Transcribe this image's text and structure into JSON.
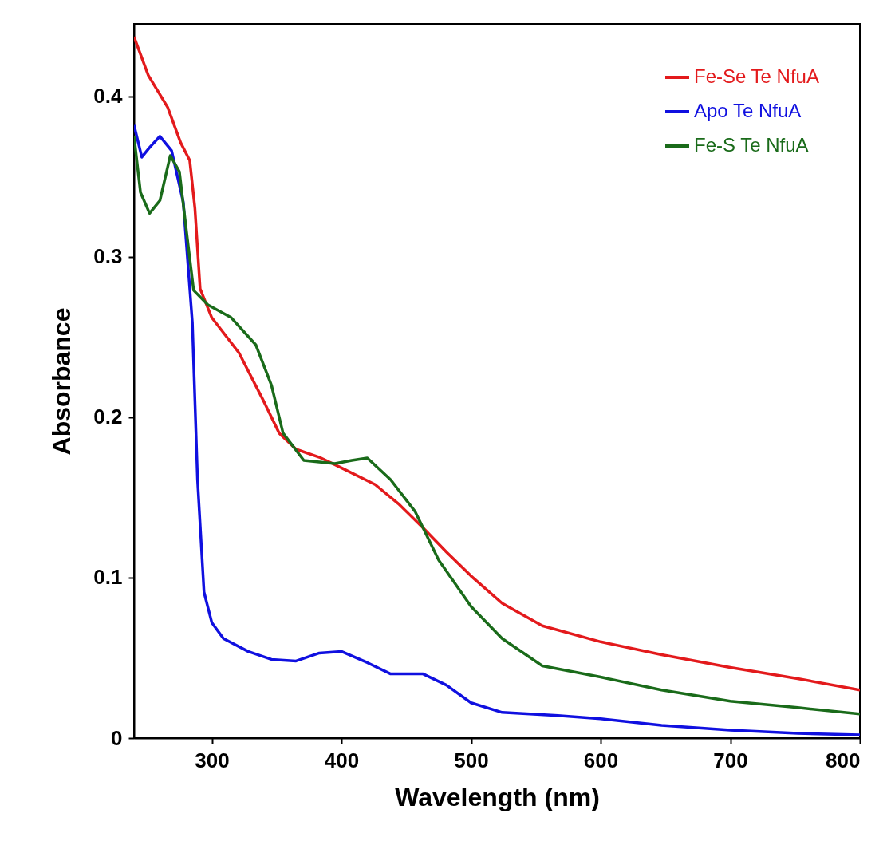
{
  "chart_data": {
    "type": "line",
    "xlabel": "Wavelength (nm)",
    "ylabel": "Absorbance",
    "xlim": [
      240,
      800
    ],
    "ylim": [
      0,
      0.445
    ],
    "xticks": [
      300,
      400,
      500,
      600,
      700,
      800
    ],
    "yticks": [
      0,
      0.1,
      0.2,
      0.3,
      0.4
    ],
    "grid": false,
    "legend": "top right",
    "marker": "none",
    "line_style": "solid",
    "series": [
      {
        "name": "Fe-Se Te NfuA",
        "color": "#e31a1c",
        "x": [
          240,
          251,
          266,
          276,
          283,
          287,
          291,
          300,
          321,
          340,
          352,
          365,
          383,
          401,
          426,
          444,
          463,
          481,
          500,
          524,
          555,
          600,
          647,
          700,
          752,
          800
        ],
        "values": [
          0.437,
          0.413,
          0.393,
          0.371,
          0.36,
          0.33,
          0.28,
          0.262,
          0.24,
          0.21,
          0.19,
          0.18,
          0.175,
          0.168,
          0.158,
          0.146,
          0.131,
          0.116,
          0.101,
          0.084,
          0.07,
          0.06,
          0.052,
          0.044,
          0.037,
          0.03
        ]
      },
      {
        "name": "Apo Te NfuA",
        "color": "#1010e0",
        "x": [
          240,
          246,
          252,
          260,
          269,
          278,
          285,
          289,
          294,
          300,
          309,
          328,
          346,
          365,
          383,
          400,
          420,
          438,
          463,
          481,
          500,
          524,
          567,
          600,
          647,
          700,
          752,
          800
        ],
        "values": [
          0.382,
          0.362,
          0.368,
          0.375,
          0.366,
          0.334,
          0.259,
          0.161,
          0.091,
          0.072,
          0.062,
          0.054,
          0.049,
          0.048,
          0.053,
          0.054,
          0.047,
          0.04,
          0.04,
          0.033,
          0.022,
          0.016,
          0.014,
          0.012,
          0.008,
          0.005,
          0.003,
          0.002
        ]
      },
      {
        "name": "Fe-S Te NfuA",
        "color": "#1a6b1a",
        "x": [
          240,
          245,
          252,
          260,
          268,
          275,
          280,
          286,
          297,
          315,
          334,
          346,
          355,
          371,
          395,
          408,
          420,
          438,
          457,
          475,
          500,
          524,
          555,
          600,
          647,
          700,
          752,
          800
        ],
        "values": [
          0.375,
          0.34,
          0.327,
          0.335,
          0.363,
          0.353,
          0.319,
          0.279,
          0.27,
          0.262,
          0.245,
          0.22,
          0.19,
          0.173,
          0.171,
          0.173,
          0.1745,
          0.161,
          0.141,
          0.111,
          0.082,
          0.062,
          0.045,
          0.038,
          0.03,
          0.023,
          0.019,
          0.015
        ]
      }
    ]
  }
}
